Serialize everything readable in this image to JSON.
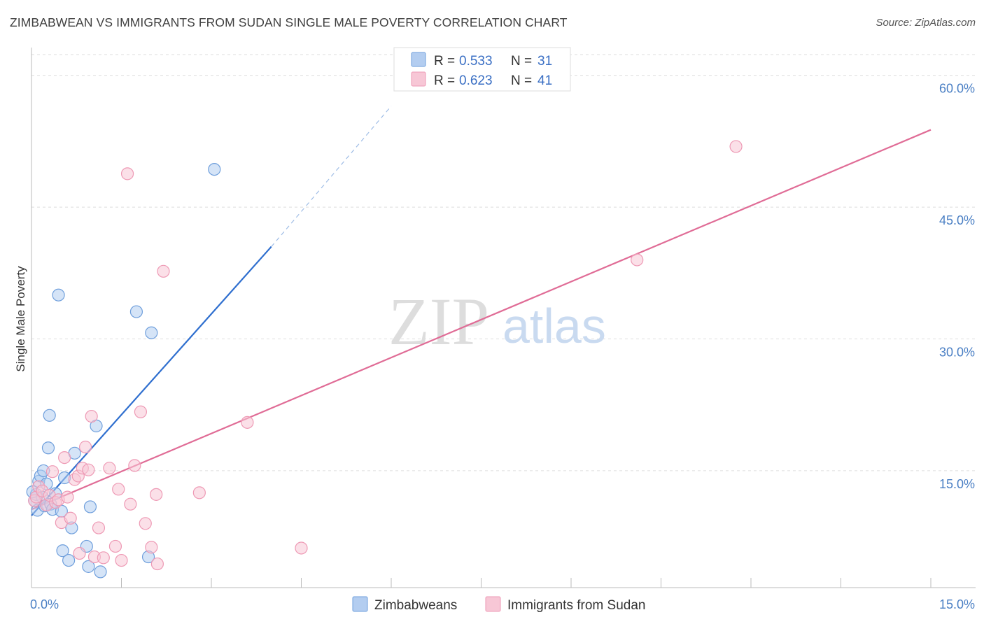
{
  "chart_data": {
    "type": "scatter",
    "title": "ZIMBABWEAN VS IMMIGRANTS FROM SUDAN SINGLE MALE POVERTY CORRELATION CHART",
    "source": "Source: ZipAtlas.com",
    "xlabel": "",
    "ylabel": "Single Male Poverty",
    "xlim": [
      0,
      15
    ],
    "ylim": [
      1.7,
      63
    ],
    "x_tick_labels": [
      {
        "value": 0,
        "label": "0.0%"
      },
      {
        "value": 15,
        "label": "15.0%"
      }
    ],
    "y_ticks": [
      {
        "value": 15,
        "label": "15.0%"
      },
      {
        "value": 30,
        "label": "30.0%"
      },
      {
        "value": 45,
        "label": "45.0%"
      },
      {
        "value": 60,
        "label": "60.0%"
      }
    ],
    "grid": true,
    "legend_stats": [
      {
        "series": "Zimbabweans",
        "r_label": "R =",
        "r_value": "0.533",
        "n_label": "N =",
        "n_value": "31"
      },
      {
        "series": "Immigrants from Sudan",
        "r_label": "R =",
        "r_value": "0.623",
        "n_label": "N =",
        "n_value": "41"
      }
    ],
    "series": [
      {
        "name": "Zimbabweans",
        "color": "#6f9fdc",
        "fill": "#b3cdf0",
        "trend": {
          "x0": 0,
          "y0": 9.9,
          "x1": 4.0,
          "y1": 40.5,
          "dash_to_x": 6.0,
          "dash_to_y": 56.5,
          "color": "#2f6fcf"
        },
        "points": [
          [
            0.05,
            11.6
          ],
          [
            0.08,
            12.3
          ],
          [
            0.1,
            10.5
          ],
          [
            0.12,
            13.8
          ],
          [
            0.15,
            14.4
          ],
          [
            0.18,
            12.0
          ],
          [
            0.2,
            15.0
          ],
          [
            0.22,
            11.0
          ],
          [
            0.25,
            13.5
          ],
          [
            0.28,
            17.6
          ],
          [
            0.3,
            21.3
          ],
          [
            0.32,
            11.2
          ],
          [
            0.35,
            10.6
          ],
          [
            0.45,
            35.0
          ],
          [
            0.5,
            10.4
          ],
          [
            0.52,
            5.9
          ],
          [
            0.55,
            14.2
          ],
          [
            0.62,
            4.8
          ],
          [
            0.67,
            8.5
          ],
          [
            0.72,
            17.0
          ],
          [
            0.92,
            6.4
          ],
          [
            0.95,
            4.1
          ],
          [
            0.98,
            10.9
          ],
          [
            1.08,
            20.1
          ],
          [
            1.15,
            3.5
          ],
          [
            1.75,
            33.1
          ],
          [
            1.95,
            5.2
          ],
          [
            2.0,
            30.7
          ],
          [
            3.05,
            49.3
          ],
          [
            0.02,
            12.6
          ],
          [
            0.4,
            12.4
          ]
        ]
      },
      {
        "name": "Immigrants from Sudan",
        "color": "#ee9ab5",
        "fill": "#f7c7d6",
        "trend": {
          "x0": 0,
          "y0": 10.6,
          "x1": 15.0,
          "y1": 53.8,
          "color": "#e06c96"
        },
        "points": [
          [
            0.05,
            11.6
          ],
          [
            0.08,
            12.0
          ],
          [
            0.12,
            13.2
          ],
          [
            0.18,
            12.7
          ],
          [
            0.25,
            11.1
          ],
          [
            0.3,
            12.2
          ],
          [
            0.35,
            14.9
          ],
          [
            0.4,
            11.4
          ],
          [
            0.45,
            11.7
          ],
          [
            0.5,
            9.1
          ],
          [
            0.55,
            16.5
          ],
          [
            0.6,
            12.0
          ],
          [
            0.65,
            9.6
          ],
          [
            0.72,
            14.0
          ],
          [
            0.78,
            14.4
          ],
          [
            0.8,
            5.6
          ],
          [
            0.85,
            15.3
          ],
          [
            0.9,
            17.7
          ],
          [
            0.95,
            15.1
          ],
          [
            1.0,
            21.2
          ],
          [
            1.05,
            5.2
          ],
          [
            1.12,
            8.5
          ],
          [
            1.2,
            5.1
          ],
          [
            1.3,
            15.3
          ],
          [
            1.4,
            6.4
          ],
          [
            1.45,
            12.9
          ],
          [
            1.5,
            4.8
          ],
          [
            1.6,
            48.8
          ],
          [
            1.65,
            11.2
          ],
          [
            1.72,
            15.6
          ],
          [
            1.82,
            21.7
          ],
          [
            1.9,
            9.0
          ],
          [
            2.0,
            6.3
          ],
          [
            2.08,
            12.3
          ],
          [
            2.1,
            4.4
          ],
          [
            2.2,
            37.7
          ],
          [
            2.8,
            12.5
          ],
          [
            3.6,
            20.5
          ],
          [
            4.5,
            6.2
          ],
          [
            10.1,
            39.0
          ],
          [
            11.75,
            51.9
          ]
        ]
      }
    ]
  },
  "watermark": {
    "zip": "ZIP",
    "atlas": "atlas"
  }
}
